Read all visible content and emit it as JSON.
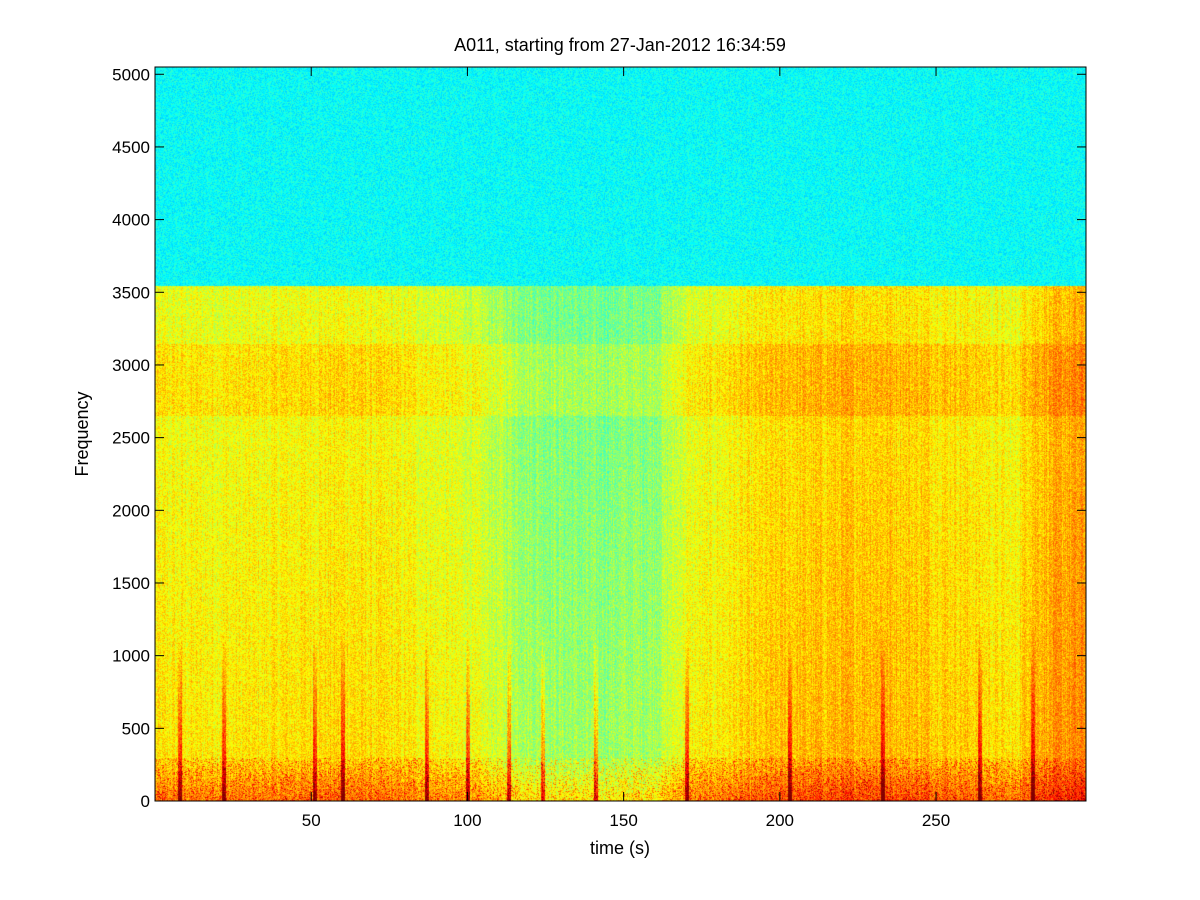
{
  "chart_data": {
    "type": "heatmap",
    "title": "A011, starting from 27-Jan-2012 16:34:59",
    "xlabel": "time (s)",
    "ylabel": "Frequency",
    "xlim": [
      0,
      298
    ],
    "ylim": [
      0,
      5050
    ],
    "xticks": [
      50,
      100,
      150,
      200,
      250
    ],
    "xtick_labels": [
      "50",
      "100",
      "150",
      "200",
      "250"
    ],
    "yticks": [
      0,
      500,
      1000,
      1500,
      2000,
      2500,
      3000,
      3500,
      4000,
      4500,
      5000
    ],
    "ytick_labels": [
      "0",
      "500",
      "1000",
      "1500",
      "2000",
      "2500",
      "3000",
      "3500",
      "4000",
      "4500",
      "5000"
    ],
    "colormap": "jet",
    "grid": false,
    "colors": {
      "low": "#3cf5c8",
      "mid": "#f0f020",
      "high": "#d81010"
    },
    "energy_profile": {
      "description_free_levels": true,
      "band_edge_hz": 3550,
      "upper_band_level": 0.38,
      "lower_band_level_by_time": [
        [
          0,
          0.6
        ],
        [
          30,
          0.6
        ],
        [
          60,
          0.62
        ],
        [
          80,
          0.6
        ],
        [
          100,
          0.57
        ],
        [
          120,
          0.5
        ],
        [
          140,
          0.48
        ],
        [
          160,
          0.5
        ],
        [
          170,
          0.58
        ],
        [
          200,
          0.64
        ],
        [
          230,
          0.66
        ],
        [
          260,
          0.63
        ],
        [
          275,
          0.6
        ],
        [
          280,
          0.66
        ],
        [
          298,
          0.7
        ]
      ],
      "low_freq_hot_band_hz": 300,
      "transient_times_s": [
        8,
        22,
        51,
        60,
        87,
        100,
        113,
        124,
        141,
        170,
        203,
        233,
        264,
        281
      ]
    }
  }
}
